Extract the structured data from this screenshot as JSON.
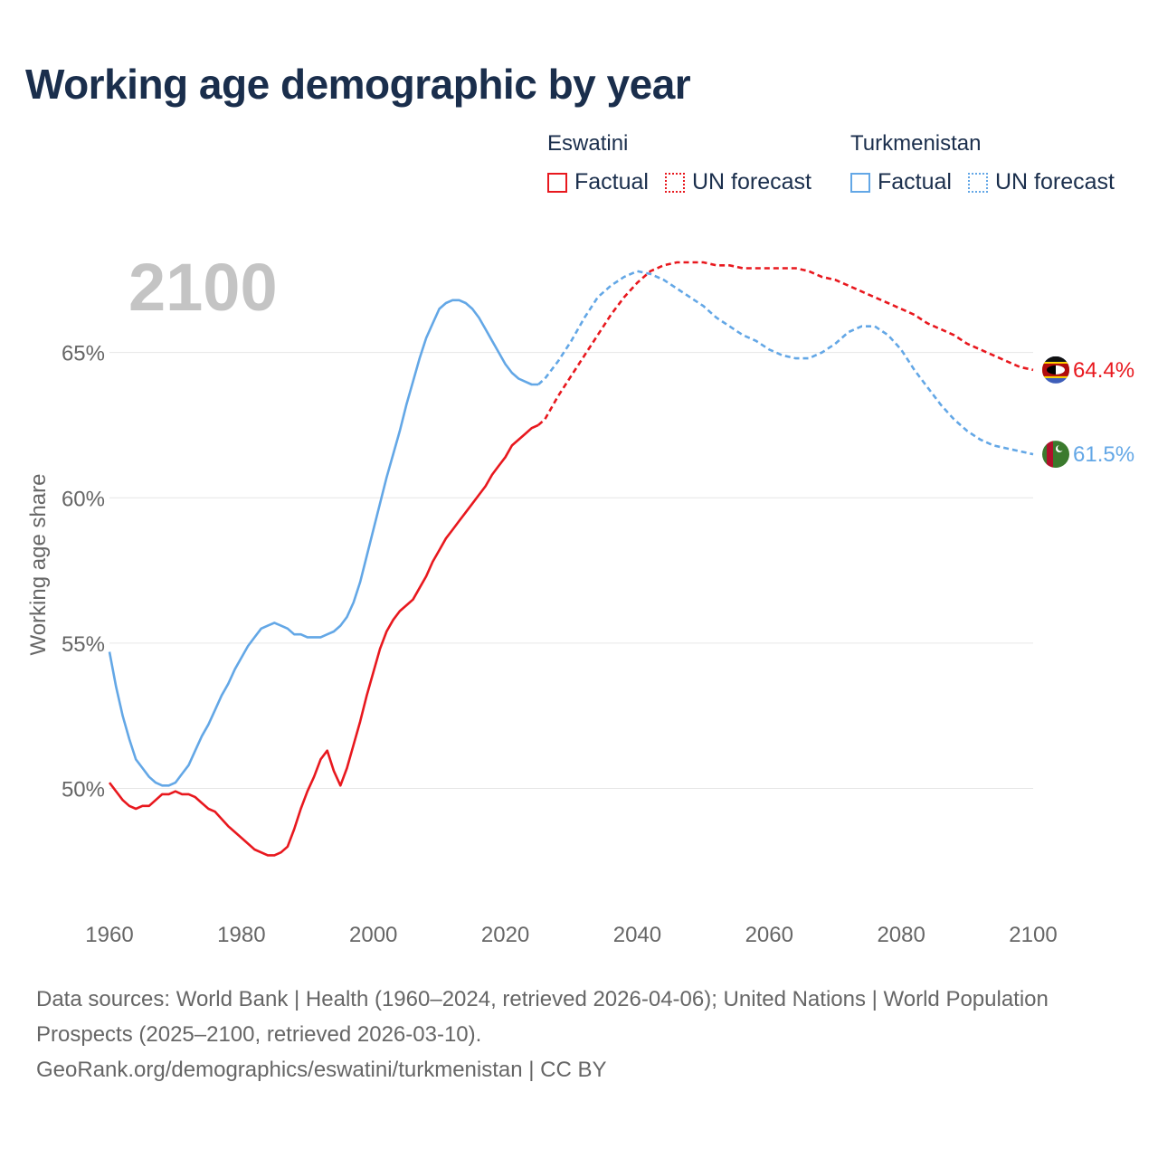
{
  "title": "Working age demographic by year",
  "legend": {
    "groups": [
      {
        "name": "Eswatini",
        "color": "#e8181e",
        "factual_label": "Factual",
        "forecast_label": "UN forecast"
      },
      {
        "name": "Turkmenistan",
        "color": "#63a7e6",
        "factual_label": "Factual",
        "forecast_label": "UN forecast"
      }
    ]
  },
  "footer": {
    "sources": "Data sources: World Bank | Health (1960–2024, retrieved 2026-04-06); United Nations | World Population Prospects (2025–2100, retrieved 2026-03-10).",
    "url": "GeoRank.org/demographics/eswatini/turkmenistan | CC BY"
  },
  "chart_data": {
    "type": "line",
    "title": "Working age demographic by year",
    "year_label": "2100",
    "xlabel": "",
    "ylabel": "Working age share",
    "xlim": [
      1960,
      2100
    ],
    "ylim": [
      46,
      70
    ],
    "x_ticks": [
      1960,
      1980,
      2000,
      2020,
      2040,
      2060,
      2080,
      2100
    ],
    "y_ticks": [
      {
        "value": 50,
        "label": "50%"
      },
      {
        "value": 55,
        "label": "55%"
      },
      {
        "value": 60,
        "label": "60%"
      },
      {
        "value": 65,
        "label": "65%"
      }
    ],
    "series": [
      {
        "name": "Eswatini",
        "color": "#e8181e",
        "end_label": "64.4%",
        "factual": {
          "x": [
            1960,
            1962,
            1963,
            1964,
            1965,
            1966,
            1967,
            1968,
            1969,
            1970,
            1971,
            1972,
            1973,
            1974,
            1975,
            1976,
            1978,
            1980,
            1982,
            1984,
            1985,
            1986,
            1987,
            1988,
            1989,
            1990,
            1991,
            1992,
            1993,
            1994,
            1995,
            1996,
            1997,
            1998,
            1999,
            2000,
            2001,
            2002,
            2003,
            2004,
            2005,
            2006,
            2007,
            2008,
            2009,
            2010,
            2011,
            2012,
            2013,
            2014,
            2015,
            2016,
            2017,
            2018,
            2019,
            2020,
            2021,
            2022,
            2023,
            2024,
            2025
          ],
          "y": [
            50.2,
            49.6,
            49.4,
            49.3,
            49.4,
            49.4,
            49.6,
            49.8,
            49.8,
            49.9,
            49.8,
            49.8,
            49.7,
            49.5,
            49.3,
            49.2,
            48.7,
            48.3,
            47.9,
            47.7,
            47.7,
            47.8,
            48.0,
            48.6,
            49.3,
            49.9,
            50.4,
            51.0,
            51.3,
            50.6,
            50.1,
            50.7,
            51.5,
            52.3,
            53.2,
            54.0,
            54.8,
            55.4,
            55.8,
            56.1,
            56.3,
            56.5,
            56.9,
            57.3,
            57.8,
            58.2,
            58.6,
            58.9,
            59.2,
            59.5,
            59.8,
            60.1,
            60.4,
            60.8,
            61.1,
            61.4,
            61.8,
            62.0,
            62.2,
            62.4,
            62.5
          ]
        },
        "forecast": {
          "x": [
            2025,
            2026,
            2028,
            2030,
            2032,
            2034,
            2036,
            2038,
            2040,
            2042,
            2044,
            2046,
            2048,
            2050,
            2052,
            2054,
            2056,
            2058,
            2060,
            2062,
            2064,
            2066,
            2068,
            2070,
            2072,
            2074,
            2076,
            2078,
            2080,
            2082,
            2084,
            2086,
            2088,
            2090,
            2092,
            2094,
            2096,
            2098,
            2100
          ],
          "y": [
            62.5,
            62.7,
            63.5,
            64.2,
            64.9,
            65.6,
            66.3,
            66.9,
            67.4,
            67.8,
            68.0,
            68.1,
            68.1,
            68.1,
            68.0,
            68.0,
            67.9,
            67.9,
            67.9,
            67.9,
            67.9,
            67.8,
            67.6,
            67.5,
            67.3,
            67.1,
            66.9,
            66.7,
            66.5,
            66.3,
            66.0,
            65.8,
            65.6,
            65.3,
            65.1,
            64.9,
            64.7,
            64.5,
            64.4
          ]
        }
      },
      {
        "name": "Turkmenistan",
        "color": "#63a7e6",
        "end_label": "61.5%",
        "factual": {
          "x": [
            1960,
            1961,
            1962,
            1963,
            1964,
            1965,
            1966,
            1967,
            1968,
            1969,
            1970,
            1971,
            1972,
            1973,
            1974,
            1975,
            1976,
            1977,
            1978,
            1979,
            1980,
            1981,
            1982,
            1983,
            1984,
            1985,
            1986,
            1987,
            1988,
            1989,
            1990,
            1991,
            1992,
            1993,
            1994,
            1995,
            1996,
            1997,
            1998,
            1999,
            2000,
            2001,
            2002,
            2003,
            2004,
            2005,
            2006,
            2007,
            2008,
            2009,
            2010,
            2011,
            2012,
            2013,
            2014,
            2015,
            2016,
            2017,
            2018,
            2019,
            2020,
            2021,
            2022,
            2023,
            2024,
            2025
          ],
          "y": [
            54.7,
            53.5,
            52.5,
            51.7,
            51.0,
            50.7,
            50.4,
            50.2,
            50.1,
            50.1,
            50.2,
            50.5,
            50.8,
            51.3,
            51.8,
            52.2,
            52.7,
            53.2,
            53.6,
            54.1,
            54.5,
            54.9,
            55.2,
            55.5,
            55.6,
            55.7,
            55.6,
            55.5,
            55.3,
            55.3,
            55.2,
            55.2,
            55.2,
            55.3,
            55.4,
            55.6,
            55.9,
            56.4,
            57.1,
            58.0,
            58.9,
            59.8,
            60.7,
            61.5,
            62.3,
            63.2,
            64.0,
            64.8,
            65.5,
            66.0,
            66.5,
            66.7,
            66.8,
            66.8,
            66.7,
            66.5,
            66.2,
            65.8,
            65.4,
            65.0,
            64.6,
            64.3,
            64.1,
            64.0,
            63.9,
            63.9
          ]
        },
        "forecast": {
          "x": [
            2025,
            2026,
            2028,
            2030,
            2032,
            2034,
            2036,
            2038,
            2040,
            2042,
            2044,
            2046,
            2048,
            2050,
            2052,
            2054,
            2056,
            2058,
            2060,
            2062,
            2064,
            2066,
            2068,
            2070,
            2072,
            2074,
            2076,
            2078,
            2080,
            2082,
            2084,
            2086,
            2088,
            2090,
            2092,
            2094,
            2096,
            2098,
            2100
          ],
          "y": [
            63.9,
            64.1,
            64.7,
            65.4,
            66.2,
            66.9,
            67.3,
            67.6,
            67.8,
            67.7,
            67.5,
            67.2,
            66.9,
            66.6,
            66.2,
            65.9,
            65.6,
            65.4,
            65.1,
            64.9,
            64.8,
            64.8,
            65.0,
            65.3,
            65.7,
            65.9,
            65.9,
            65.6,
            65.1,
            64.4,
            63.8,
            63.2,
            62.7,
            62.3,
            62.0,
            61.8,
            61.7,
            61.6,
            61.5
          ]
        }
      }
    ]
  }
}
